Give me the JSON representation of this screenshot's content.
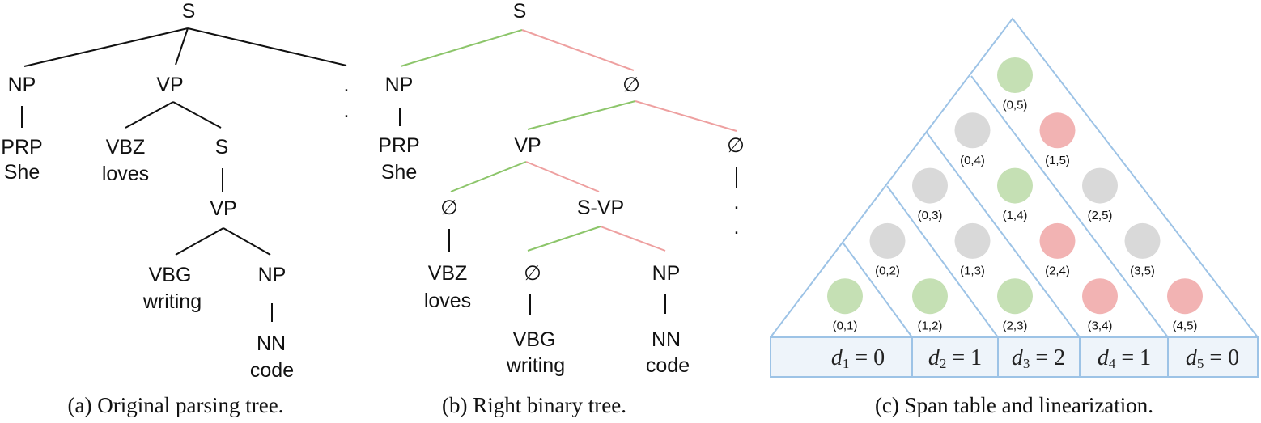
{
  "panel_a": {
    "caption": "(a)  Original parsing tree.",
    "nodes": {
      "root": "S",
      "np": "NP",
      "prp": "PRP",
      "she": "She",
      "vp": "VP",
      "vbz": "VBZ",
      "loves": "loves",
      "s2": "S",
      "vp2": "VP",
      "vbg": "VBG",
      "writing": "writing",
      "np2": "NP",
      "nn": "NN",
      "code": "code",
      "punct_top": ".",
      "punct_bottom": "."
    }
  },
  "panel_b": {
    "caption": "(b)  Right binary tree.",
    "edge_colors": {
      "left": "#8cc56a",
      "right": "#eea0a0"
    },
    "nodes": {
      "root": "S",
      "np": "NP",
      "prp": "PRP",
      "she": "She",
      "empty1": "∅",
      "vp": "VP",
      "empty2": "∅",
      "punct_top": ".",
      "punct_bottom": ".",
      "empty3": "∅",
      "vbz": "VBZ",
      "loves": "loves",
      "svp": "S-VP",
      "empty4": "∅",
      "vbg": "VBG",
      "writing": "writing",
      "np2": "NP",
      "nn": "NN",
      "code": "code"
    }
  },
  "panel_c": {
    "caption": "(c)  Span table and linearization.",
    "colors": {
      "green": "#c5e0b4",
      "red": "#f2b3b3",
      "gray": "#d9d9d9",
      "line": "#9dc3e6"
    },
    "spans": [
      [
        {
          "label": "(0,5)",
          "status": "green"
        }
      ],
      [
        {
          "label": "(0,4)",
          "status": "gray"
        },
        {
          "label": "(1,5)",
          "status": "red"
        }
      ],
      [
        {
          "label": "(0,3)",
          "status": "gray"
        },
        {
          "label": "(1,4)",
          "status": "green"
        },
        {
          "label": "(2,5)",
          "status": "gray"
        }
      ],
      [
        {
          "label": "(0,2)",
          "status": "gray"
        },
        {
          "label": "(1,3)",
          "status": "gray"
        },
        {
          "label": "(2,4)",
          "status": "red"
        },
        {
          "label": "(3,5)",
          "status": "gray"
        }
      ],
      [
        {
          "label": "(0,1)",
          "status": "green"
        },
        {
          "label": "(1,2)",
          "status": "green"
        },
        {
          "label": "(2,3)",
          "status": "green"
        },
        {
          "label": "(3,4)",
          "status": "red"
        },
        {
          "label": "(4,5)",
          "status": "red"
        }
      ]
    ],
    "linearization": [
      {
        "var": "d",
        "sub": "1",
        "eq": " = 0"
      },
      {
        "var": "d",
        "sub": "2",
        "eq": " = 1"
      },
      {
        "var": "d",
        "sub": "3",
        "eq": " = 2"
      },
      {
        "var": "d",
        "sub": "4",
        "eq": " = 1"
      },
      {
        "var": "d",
        "sub": "5",
        "eq": " = 0"
      }
    ]
  }
}
